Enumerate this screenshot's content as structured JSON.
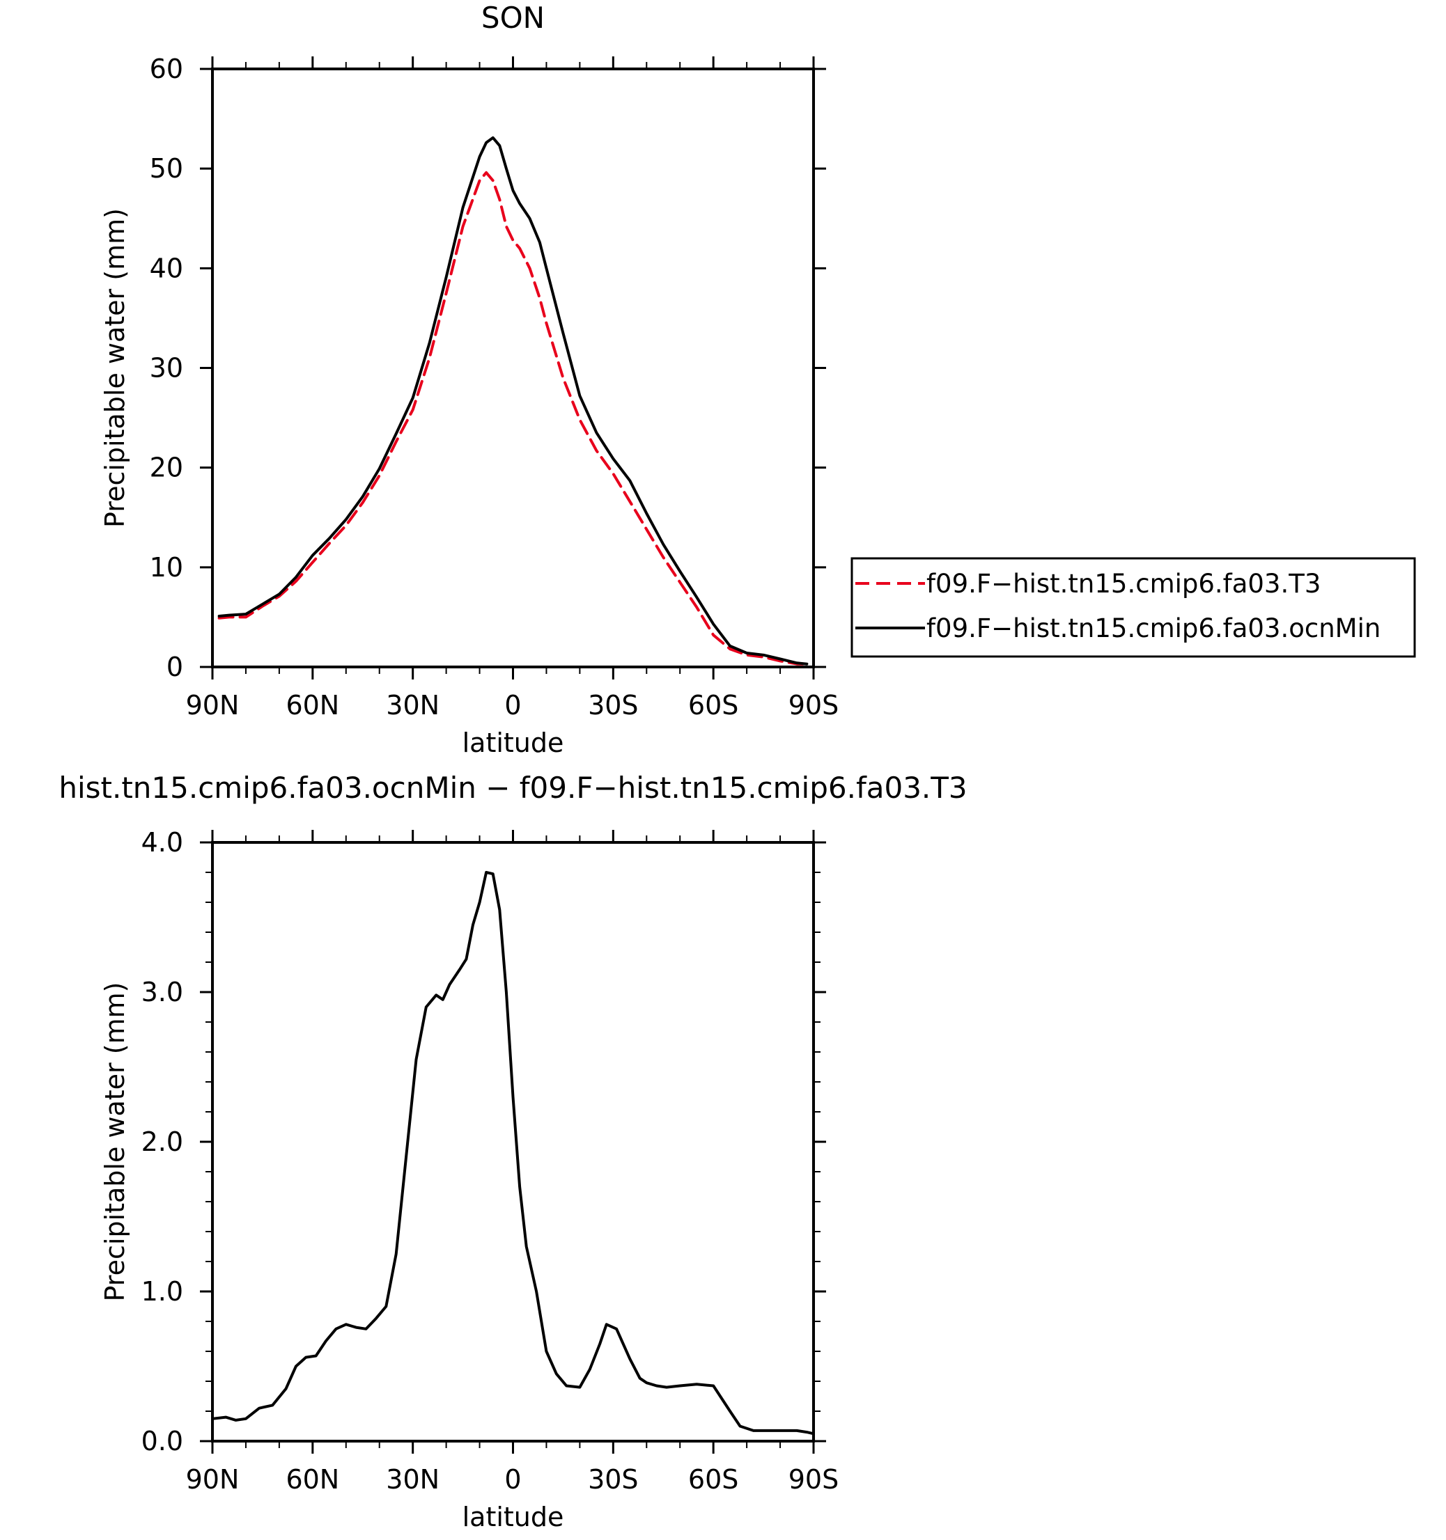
{
  "chart_data": [
    {
      "type": "line",
      "title": "SON",
      "xlabel": "latitude",
      "ylabel": "Precipitable water (mm)",
      "xlim": [
        90,
        -90
      ],
      "ylim": [
        0,
        60
      ],
      "x_ticks": [
        90,
        60,
        30,
        0,
        -30,
        -60,
        -90
      ],
      "x_tick_labels": [
        "90N",
        "60N",
        "30N",
        "0",
        "30S",
        "60S",
        "90S"
      ],
      "y_ticks": [
        0,
        10,
        20,
        30,
        40,
        50,
        60
      ],
      "y_tick_labels": [
        "0",
        "10",
        "20",
        "30",
        "40",
        "50",
        "60"
      ],
      "legend_position": "right",
      "series": [
        {
          "name": "f09.F−hist.tn15.cmip6.fa03.T3",
          "color": "#e8001c",
          "dash": "dashed",
          "x": [
            88,
            85,
            80,
            75,
            70,
            65,
            60,
            55,
            50,
            45,
            40,
            35,
            30,
            25,
            20,
            15,
            10,
            8,
            6,
            4,
            2,
            0,
            -2,
            -5,
            -8,
            -10,
            -15,
            -20,
            -25,
            -30,
            -35,
            -40,
            -45,
            -50,
            -55,
            -60,
            -65,
            -70,
            -75,
            -80,
            -85,
            -88
          ],
          "values": [
            4.9,
            5.0,
            5.0,
            6.1,
            7.1,
            8.6,
            10.5,
            12.4,
            14.2,
            16.5,
            19.2,
            22.6,
            25.8,
            31.0,
            37.5,
            44.2,
            48.8,
            49.6,
            48.8,
            46.9,
            44.2,
            42.8,
            42.0,
            40.0,
            37.0,
            34.5,
            29.0,
            24.8,
            21.7,
            19.4,
            16.6,
            13.8,
            11.0,
            8.5,
            6.0,
            3.2,
            1.8,
            1.2,
            1.0,
            0.6,
            0.3,
            0.3
          ]
        },
        {
          "name": "f09.F−hist.tn15.cmip6.fa03.ocnMin",
          "color": "#000000",
          "dash": "solid",
          "x": [
            88,
            85,
            80,
            75,
            70,
            65,
            60,
            55,
            50,
            45,
            40,
            35,
            30,
            25,
            20,
            15,
            10,
            8,
            6,
            4,
            2,
            0,
            -2,
            -5,
            -8,
            -10,
            -15,
            -20,
            -25,
            -30,
            -35,
            -40,
            -45,
            -50,
            -55,
            -60,
            -65,
            -70,
            -75,
            -80,
            -85,
            -88
          ],
          "values": [
            5.1,
            5.2,
            5.3,
            6.3,
            7.3,
            9.0,
            11.2,
            12.9,
            14.8,
            17.1,
            19.9,
            23.4,
            27.0,
            32.5,
            39.1,
            46.1,
            51.2,
            52.6,
            53.1,
            52.3,
            50.0,
            47.8,
            46.5,
            45.0,
            42.6,
            40.0,
            33.5,
            27.2,
            23.5,
            20.9,
            18.7,
            15.4,
            12.3,
            9.6,
            7.0,
            4.3,
            2.1,
            1.4,
            1.2,
            0.8,
            0.4,
            0.3
          ]
        }
      ]
    },
    {
      "type": "line",
      "title": "hist.tn15.cmip6.fa03.ocnMin − f09.F−hist.tn15.cmip6.fa03.T3",
      "xlabel": "latitude",
      "ylabel": "Precipitable water (mm)",
      "xlim": [
        90,
        -90
      ],
      "ylim": [
        0,
        4
      ],
      "x_ticks": [
        90,
        60,
        30,
        0,
        -30,
        -60,
        -90
      ],
      "x_tick_labels": [
        "90N",
        "60N",
        "30N",
        "0",
        "30S",
        "60S",
        "90S"
      ],
      "y_ticks": [
        0,
        1,
        2,
        3,
        4
      ],
      "y_tick_labels": [
        "0.0",
        "1.0",
        "2.0",
        "3.0",
        "4.0"
      ],
      "series": [
        {
          "color": "#000000",
          "dash": "solid",
          "x": [
            90,
            86,
            83,
            80,
            76,
            72,
            68,
            65,
            62,
            59,
            56,
            53,
            50,
            47,
            44,
            41,
            38,
            35,
            32,
            29,
            26,
            23,
            21,
            19,
            16,
            14,
            12,
            10,
            8,
            6,
            4,
            2,
            0,
            -2,
            -4,
            -7,
            -10,
            -13,
            -16,
            -20,
            -23,
            -26,
            -28,
            -31,
            -35,
            -38,
            -40,
            -43,
            -46,
            -50,
            -55,
            -60,
            -65,
            -68,
            -72,
            -76,
            -80,
            -85,
            -88,
            -90
          ],
          "values": [
            0.15,
            0.16,
            0.14,
            0.15,
            0.22,
            0.24,
            0.35,
            0.5,
            0.56,
            0.57,
            0.67,
            0.75,
            0.78,
            0.76,
            0.75,
            0.82,
            0.9,
            1.25,
            1.9,
            2.55,
            2.9,
            2.98,
            2.95,
            3.05,
            3.15,
            3.22,
            3.45,
            3.6,
            3.8,
            3.79,
            3.55,
            3.0,
            2.3,
            1.7,
            1.3,
            1.0,
            0.6,
            0.45,
            0.37,
            0.36,
            0.48,
            0.65,
            0.78,
            0.75,
            0.55,
            0.42,
            0.39,
            0.37,
            0.36,
            0.37,
            0.38,
            0.37,
            0.2,
            0.1,
            0.07,
            0.07,
            0.07,
            0.07,
            0.06,
            0.05
          ]
        }
      ]
    }
  ]
}
